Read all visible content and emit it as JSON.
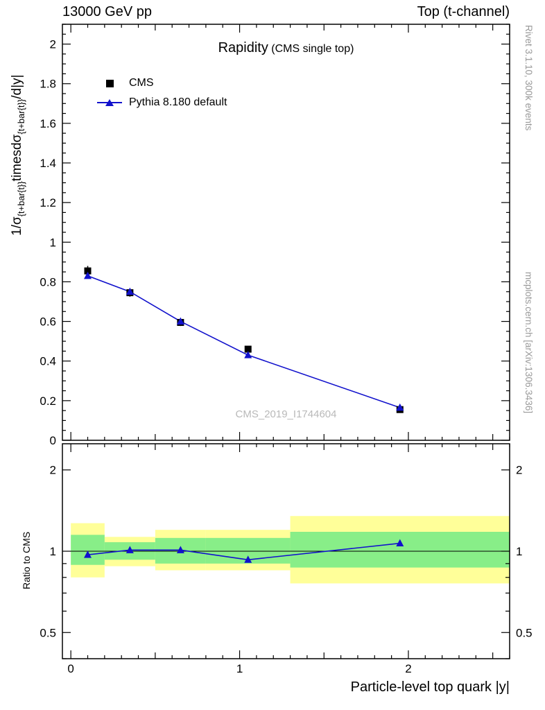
{
  "header": {
    "left": "13000 GeV pp",
    "right": "Top (t-channel)"
  },
  "sidebar": {
    "rivet": "Rivet 3.1.10,  300k events",
    "mcplots": "mcplots.cern.ch [arXiv:1306.3436]"
  },
  "watermark": "CMS_2019_I1744604",
  "title": {
    "main": "Rapidity",
    "sub": "(CMS single top)"
  },
  "ylabel": {
    "p1": "1/σ",
    "sub1": "{t+bar{t}}",
    "p2": "timesdσ",
    "sub2": "{t+bar{t}}",
    "p3": "/d|y|"
  },
  "ratio_label": "Ratio to CMS",
  "xlabel": "Particle-level top quark |y|",
  "legend": {
    "items": [
      {
        "label": "CMS",
        "marker": "black-square",
        "color": "#000000"
      },
      {
        "label": "Pythia 8.180 default",
        "marker": "blue-triangle-line",
        "color": "#1111cc"
      }
    ]
  },
  "colors": {
    "cms": "#000000",
    "pythia": "#1111cc",
    "band_yellow": "#ffff99",
    "band_green": "#88ee88",
    "frame": "#000000",
    "watermark": "#b9b9b9",
    "side_text": "#999999"
  },
  "chart_data": {
    "type": "line",
    "title": "Rapidity (CMS single top)",
    "xlabel": "Particle-level top quark |y|",
    "ylabel": "1/sigma_{t+tbar} times dsigma_{t+tbar}/d|y|",
    "xlim": [
      0,
      2.6
    ],
    "ylim": [
      0,
      2.1
    ],
    "xticks": [
      0,
      1,
      2
    ],
    "yticks": [
      0,
      0.2,
      0.4,
      0.6,
      0.8,
      1,
      1.2,
      1.4,
      1.6,
      1.8,
      2
    ],
    "grid": false,
    "legend_position": "top-left",
    "bin_edges": [
      0,
      0.2,
      0.5,
      0.8,
      1.3,
      2.6
    ],
    "x": [
      0.1,
      0.35,
      0.65,
      1.05,
      1.95
    ],
    "series": [
      {
        "name": "CMS",
        "marker": "square",
        "color": "#000000",
        "values": [
          0.855,
          0.745,
          0.595,
          0.46,
          0.155
        ],
        "errors": [
          0.025,
          0.02,
          0.018,
          0.015,
          0.01
        ]
      },
      {
        "name": "Pythia 8.180 default",
        "marker": "triangle",
        "color": "#1111cc",
        "values": [
          0.83,
          0.75,
          0.6,
          0.43,
          0.165
        ]
      }
    ],
    "ratio": {
      "ylabel": "Ratio to CMS",
      "scale": "log",
      "ylim": [
        0.4,
        2.5
      ],
      "yticks": [
        0.5,
        1,
        2
      ],
      "values": [
        0.97,
        1.01,
        1.01,
        0.93,
        1.07
      ],
      "bands": {
        "yellow": {
          "lo": [
            0.8,
            0.88,
            0.85,
            0.85,
            0.76
          ],
          "hi": [
            1.27,
            1.13,
            1.2,
            1.2,
            1.35
          ]
        },
        "green": {
          "lo": [
            0.89,
            0.93,
            0.9,
            0.9,
            0.87
          ],
          "hi": [
            1.15,
            1.08,
            1.12,
            1.12,
            1.18
          ]
        }
      }
    }
  }
}
